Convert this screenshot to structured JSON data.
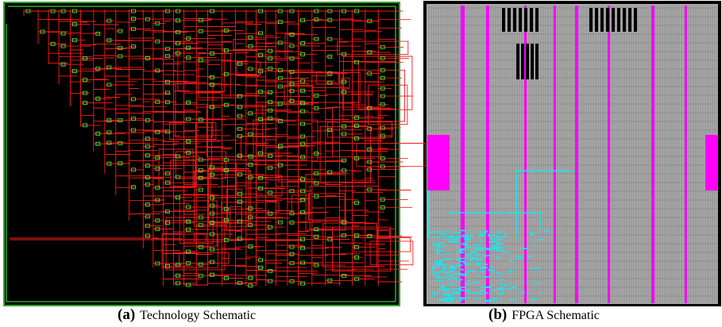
{
  "figures": [
    {
      "label": "(a)",
      "caption": "Technology Schematic"
    },
    {
      "label": "(b)",
      "caption": "FPGA Schematic"
    }
  ]
}
